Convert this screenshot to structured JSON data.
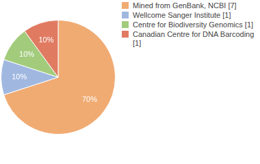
{
  "chart_data": {
    "type": "pie",
    "categories": [
      "Mined from GenBank, NCBI [7]",
      "Wellcome Sanger Institute [1]",
      "Centre for Biodiversity Genomics [1]",
      "Canadian Centre for DNA Barcoding [1]"
    ],
    "values": [
      70,
      10,
      10,
      10
    ],
    "value_labels": [
      "70%",
      "10%",
      "10%",
      "10%"
    ],
    "colors": [
      "#f0ab73",
      "#a0b8e0",
      "#a2cc7c",
      "#e07b62"
    ],
    "data_labels": true,
    "legend": "top-right"
  }
}
